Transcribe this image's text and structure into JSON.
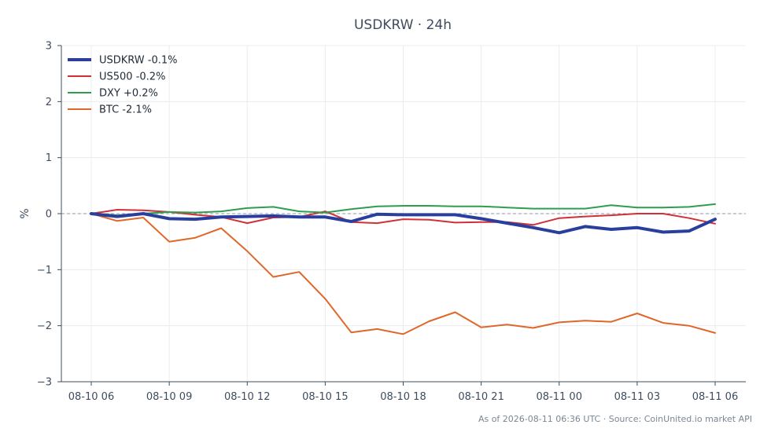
{
  "chart_data": {
    "type": "line",
    "title": "USDKRW · 24h",
    "xlabel": "",
    "ylabel": "%",
    "ylim": [
      -3,
      3
    ],
    "yticks": [
      "−3",
      "−2",
      "−1",
      "0",
      "1",
      "2",
      "3"
    ],
    "yticks_values": [
      -3,
      -2,
      -1,
      0,
      1,
      2,
      3
    ],
    "xticks": [
      "08-10 06",
      "08-10 09",
      "08-10 12",
      "08-10 15",
      "08-10 18",
      "08-10 21",
      "08-11 00",
      "08-11 03",
      "08-11 06"
    ],
    "xticks_values": [
      0,
      3,
      6,
      9,
      12,
      15,
      18,
      21,
      24
    ],
    "x": [
      0,
      1,
      2,
      3,
      4,
      5,
      6,
      7,
      8,
      9,
      10,
      11,
      12,
      13,
      14,
      15,
      16,
      17,
      18,
      19,
      20,
      21,
      22,
      23,
      24
    ],
    "zero_line": true,
    "grid": true,
    "legend_position": "top-left",
    "series": [
      {
        "name": "USDKRW -0.1%",
        "color": "#2a3f9d",
        "width": 4,
        "values": [
          0.0,
          -0.05,
          0.0,
          -0.09,
          -0.1,
          -0.06,
          -0.05,
          -0.04,
          -0.06,
          -0.06,
          -0.14,
          -0.01,
          -0.02,
          -0.02,
          -0.02,
          -0.09,
          -0.17,
          -0.25,
          -0.34,
          -0.23,
          -0.28,
          -0.25,
          -0.33,
          -0.31,
          -0.1
        ]
      },
      {
        "name": "US500 -0.2%",
        "color": "#d03037",
        "width": 2,
        "values": [
          0.0,
          0.07,
          0.06,
          0.03,
          -0.02,
          -0.06,
          -0.17,
          -0.07,
          -0.06,
          0.04,
          -0.15,
          -0.17,
          -0.1,
          -0.11,
          -0.16,
          -0.15,
          -0.15,
          -0.2,
          -0.08,
          -0.05,
          -0.03,
          0.0,
          0.0,
          -0.08,
          -0.18
        ]
      },
      {
        "name": "DXY +0.2%",
        "color": "#2e9e4e",
        "width": 2,
        "values": [
          0.01,
          -0.03,
          0.0,
          0.03,
          0.02,
          0.04,
          0.1,
          0.12,
          0.04,
          0.02,
          0.08,
          0.13,
          0.14,
          0.14,
          0.13,
          0.13,
          0.11,
          0.09,
          0.09,
          0.09,
          0.15,
          0.11,
          0.11,
          0.12,
          0.17
        ]
      },
      {
        "name": "BTC -2.1%",
        "color": "#e0672a",
        "width": 2,
        "values": [
          0.0,
          -0.13,
          -0.07,
          -0.5,
          -0.43,
          -0.26,
          -0.67,
          -1.13,
          -1.04,
          -1.52,
          -2.12,
          -2.06,
          -2.15,
          -1.92,
          -1.76,
          -2.03,
          -1.98,
          -2.04,
          -1.94,
          -1.91,
          -1.93,
          -1.78,
          -1.95,
          -2.0,
          -2.13
        ]
      }
    ]
  },
  "footer": "As of 2026-08-11 06:36 UTC · Source: CoinUnited.io market API"
}
